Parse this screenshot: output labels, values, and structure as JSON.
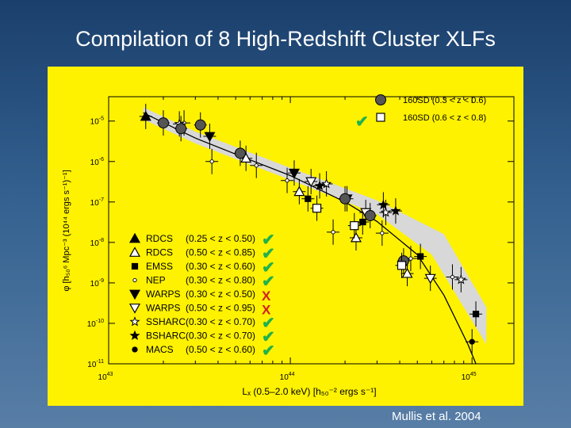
{
  "slide": {
    "title": "Compilation of 8 High-Redshift Cluster XLFs",
    "credit": "Mullis et al. 2004"
  },
  "colors": {
    "panel": "#fff200",
    "band": "#d8d8d8",
    "check": "#22b14c",
    "cross": "#d42020",
    "ink": "#000000"
  },
  "chart_data": {
    "type": "scatter",
    "xlabel": "Lₓ (0.5–2.0 keV)  [h₅₀⁻² ergs s⁻¹]",
    "ylabel": "φ  [h₅₀⁶ Mpc⁻³ (10⁴⁴ ergs s⁻¹)⁻¹]",
    "xscale": "log",
    "yscale": "log",
    "x_ticks": [
      {
        "value": 1e+43,
        "base": "10",
        "exp": "43"
      },
      {
        "value": 1e+44,
        "base": "10",
        "exp": "44"
      },
      {
        "value": 1e+45,
        "base": "10",
        "exp": "45"
      }
    ],
    "y_ticks": [
      {
        "value": 1e-05,
        "base": "10",
        "exp": "-5"
      },
      {
        "value": 1e-06,
        "base": "10",
        "exp": "-6"
      },
      {
        "value": 1e-07,
        "base": "10",
        "exp": "-7"
      },
      {
        "value": 1e-08,
        "base": "10",
        "exp": "-8"
      },
      {
        "value": 1e-09,
        "base": "10",
        "exp": "-9"
      },
      {
        "value": 1e-10,
        "base": "10",
        "exp": "-10"
      },
      {
        "value": 1e-11,
        "base": "10",
        "exp": "-11"
      }
    ],
    "xlim": [
      1e+43,
      1.7e+45
    ],
    "ylim": [
      1e-11,
      4e-05
    ],
    "legend_placement": "lower-left",
    "top_legend_placement": "top-right",
    "local_band": {
      "upper": [
        [
          1.55e+43,
          2.2e-05
        ],
        [
          3e+43,
          5.5e-06
        ],
        [
          1e+44,
          7e-07
        ],
        [
          3e+44,
          1.1e-07
        ],
        [
          7e+44,
          1.6e-08
        ],
        [
          1.2e+45,
          2.5e-10
        ]
      ],
      "lower": [
        [
          1.55e+43,
          1.1e-05
        ],
        [
          3e+43,
          2.8e-06
        ],
        [
          1e+44,
          3.5e-07
        ],
        [
          3e+44,
          5e-08
        ],
        [
          6e+44,
          5e-09
        ],
        [
          1.2e+45,
          3e-11
        ]
      ]
    },
    "model_line": [
      [
        1.55e+43,
        1.6e-05
      ],
      [
        3e+43,
        3.8e-06
      ],
      [
        6e+43,
        1.1e-06
      ],
      [
        1e+44,
        4.5e-07
      ],
      [
        2e+44,
        1e-07
      ],
      [
        3e+44,
        3.3e-08
      ],
      [
        5e+44,
        5e-09
      ],
      [
        7e+44,
        5e-10
      ],
      [
        9.5e+44,
        3e-11
      ],
      [
        1.05e+45,
        1e-11
      ]
    ],
    "series": [
      {
        "name": "RDCS",
        "z_range": "(0.25 < z < 0.50)",
        "marker": "triangle-up-filled",
        "verdict": "check",
        "points": [
          {
            "x": 1.6e+43,
            "y": 1.3e-05
          }
        ]
      },
      {
        "name": "RDCS",
        "z_range": "(0.50 < z < 0.85)",
        "marker": "triangle-up-open",
        "verdict": "check",
        "points": [
          {
            "x": 5.7e+43,
            "y": 1.2e-06
          },
          {
            "x": 1.12e+44,
            "y": 1.8e-07
          },
          {
            "x": 2.3e+44,
            "y": 1.3e-08
          },
          {
            "x": 4.4e+44,
            "y": 1.7e-09
          }
        ]
      },
      {
        "name": "EMSS",
        "z_range": "(0.30 < z < 0.60)",
        "marker": "square-filled",
        "verdict": "check",
        "points": [
          {
            "x": 1.25e+44,
            "y": 1.2e-07
          },
          {
            "x": 2.5e+44,
            "y": 3.2e-08
          },
          {
            "x": 5.2e+44,
            "y": 4.5e-09
          },
          {
            "x": 1.05e+45,
            "y": 1.7e-10
          }
        ]
      },
      {
        "name": "NEP",
        "z_range": "(0.30 < z < 0.80)",
        "marker": "circle-small-open",
        "verdict": "check",
        "points": [
          {
            "x": 2.6e+43,
            "y": 9e-06
          },
          {
            "x": 3.7e+43,
            "y": 1e-06
          },
          {
            "x": 6.5e+43,
            "y": 8e-07
          },
          {
            "x": 9.6e+43,
            "y": 3.4e-07
          },
          {
            "x": 1.72e+44,
            "y": 1.8e-08
          },
          {
            "x": 3.2e+44,
            "y": 1.7e-08
          },
          {
            "x": 4.6e+44,
            "y": 4e-09
          },
          {
            "x": 7.8e+44,
            "y": 1.4e-09
          }
        ]
      },
      {
        "name": "WARPS",
        "z_range": "(0.30 < z < 0.50)",
        "marker": "triangle-down-filled",
        "verdict": "cross",
        "points": [
          {
            "x": 3.6e+43,
            "y": 4.2e-06
          },
          {
            "x": 1.05e+44,
            "y": 5.2e-07
          },
          {
            "x": 2.05e+44,
            "y": 1.2e-07
          }
        ]
      },
      {
        "name": "WARPS",
        "z_range": "(0.50 < z < 0.95)",
        "marker": "triangle-down-open",
        "verdict": "cross",
        "points": [
          {
            "x": 1.3e+44,
            "y": 3.2e-07
          },
          {
            "x": 2.6e+44,
            "y": 5.5e-08
          },
          {
            "x": 5.9e+44,
            "y": 1.3e-09
          }
        ]
      },
      {
        "name": "SSHARC",
        "z_range": "(0.30 < z < 0.70)",
        "marker": "star-open",
        "verdict": "check",
        "points": [
          {
            "x": 2.45e+43,
            "y": 8.5e-06
          },
          {
            "x": 1.58e+44,
            "y": 2.8e-07
          },
          {
            "x": 3.35e+44,
            "y": 5.5e-08
          },
          {
            "x": 8.7e+44,
            "y": 1.2e-09
          }
        ]
      },
      {
        "name": "BSHARC",
        "z_range": "(0.30 < z < 0.70)",
        "marker": "star-filled",
        "verdict": "check",
        "points": [
          {
            "x": 1.45e+44,
            "y": 2.5e-07
          },
          {
            "x": 3.25e+44,
            "y": 8.5e-08
          },
          {
            "x": 3.8e+44,
            "y": 6e-08
          }
        ]
      },
      {
        "name": "MACS",
        "z_range": "(0.50 < z < 0.60)",
        "marker": "circle-small-filled",
        "verdict": "check",
        "points": [
          {
            "x": 1e+45,
            "y": 3.5e-11
          }
        ]
      },
      {
        "name": "160SD",
        "z_range": "(0.3 < z < 0.6)",
        "marker": "circle-large-filled",
        "verdict": "check",
        "points": [
          {
            "x": 2e+43,
            "y": 9e-06
          },
          {
            "x": 2.5e+43,
            "y": 6.5e-06
          },
          {
            "x": 3.2e+43,
            "y": 8e-06
          },
          {
            "x": 5.3e+43,
            "y": 1.6e-06
          },
          {
            "x": 2e+44,
            "y": 1.2e-07
          },
          {
            "x": 2.75e+44,
            "y": 4.6e-08
          },
          {
            "x": 4.2e+44,
            "y": 3.5e-09
          }
        ]
      },
      {
        "name": "160SD",
        "z_range": "(0.6 < z < 0.8)",
        "marker": "square-open",
        "verdict": "check",
        "points": [
          {
            "x": 1.4e+44,
            "y": 7e-08
          },
          {
            "x": 2.25e+44,
            "y": 2.6e-08
          },
          {
            "x": 4.1e+44,
            "y": 2.7e-09
          }
        ]
      }
    ]
  }
}
